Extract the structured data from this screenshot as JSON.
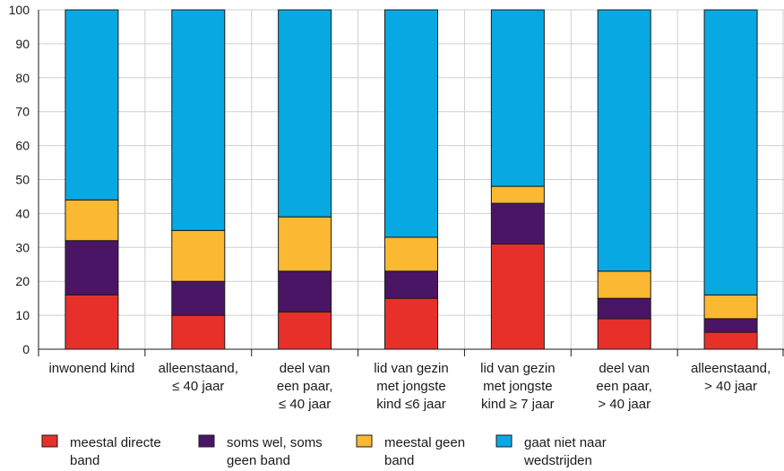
{
  "chart_data": {
    "type": "bar",
    "stacked": true,
    "title": "",
    "xlabel": "",
    "ylabel": "",
    "ylim": [
      0,
      100
    ],
    "yticks": [
      0,
      10,
      20,
      30,
      40,
      50,
      60,
      70,
      80,
      90,
      100
    ],
    "grid": "vertical and horizontal light gray lines",
    "legend_position": "bottom",
    "categories": [
      [
        "inwonend kind"
      ],
      [
        "alleenstaand,",
        "≤ 40 jaar"
      ],
      [
        "deel van",
        "een paar,",
        "≤ 40 jaar"
      ],
      [
        "lid van gezin",
        "met jongste",
        "kind ≤6 jaar"
      ],
      [
        "lid van gezin",
        "met jongste",
        "kind ≥ 7 jaar"
      ],
      [
        "deel van",
        "een paar,",
        "> 40 jaar"
      ],
      [
        "alleenstaand,",
        "> 40 jaar"
      ]
    ],
    "series": [
      {
        "name": [
          "meestal directe",
          "band"
        ],
        "color": "#e8302a",
        "values": [
          16,
          10,
          11,
          15,
          31,
          9,
          5
        ]
      },
      {
        "name": [
          "soms wel, soms",
          "geen band"
        ],
        "color": "#4b1565",
        "values": [
          16,
          10,
          12,
          8,
          12,
          6,
          4
        ]
      },
      {
        "name": [
          "meestal geen",
          "band"
        ],
        "color": "#fbb833",
        "values": [
          12,
          15,
          16,
          10,
          5,
          8,
          7
        ]
      },
      {
        "name": [
          "gaat niet naar",
          "wedstrijden"
        ],
        "color": "#08a9e3",
        "values": [
          56,
          65,
          61,
          67,
          52,
          77,
          84
        ]
      }
    ]
  }
}
